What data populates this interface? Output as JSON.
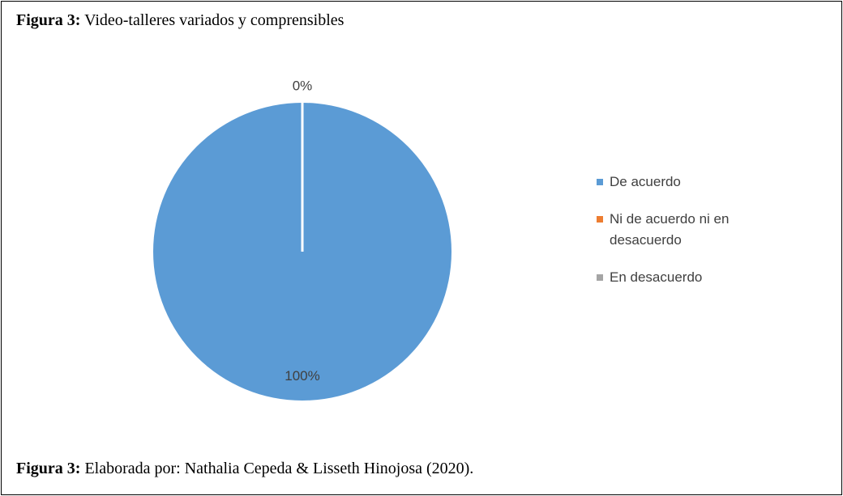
{
  "chart_data": {
    "type": "pie",
    "figure_label": "Figura 3:",
    "title": "Video-talleres variados y comprensibles",
    "caption_label": "Figura 3:",
    "caption": "Elaborada por: Nathalia Cepeda & Lisseth Hinojosa (2020).",
    "categories": [
      "De acuerdo",
      "Ni de acuerdo ni en desacuerdo",
      "En desacuerdo"
    ],
    "values": [
      100,
      0,
      0
    ],
    "value_labels": [
      "100%",
      "0%",
      null
    ],
    "colors": [
      "#5b9bd5",
      "#ed7d31",
      "#a5a5a5"
    ],
    "legend": "right"
  }
}
